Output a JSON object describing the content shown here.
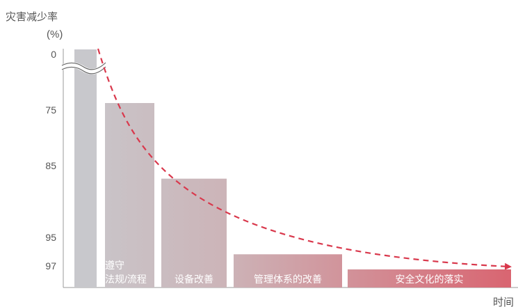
{
  "chart_data": {
    "type": "bar",
    "title": "",
    "ylabel": "灾害减少率",
    "yunit": "(%)",
    "xlabel": "时间",
    "y_ticks": [
      0,
      75,
      85,
      95,
      97
    ],
    "y_axis_break": true,
    "categories": [
      "",
      "遵守\n法规/流程",
      "设备改善",
      "管理体系的改善",
      "安全文化的落实"
    ],
    "values": [
      0,
      75,
      85,
      95,
      97
    ],
    "trend_line": "dashed-arrow-decreasing",
    "colors": {
      "bar_start": "#c8c8cc",
      "bar_end": "#d96470",
      "trend": "#d9384c",
      "axis": "#999999"
    }
  }
}
